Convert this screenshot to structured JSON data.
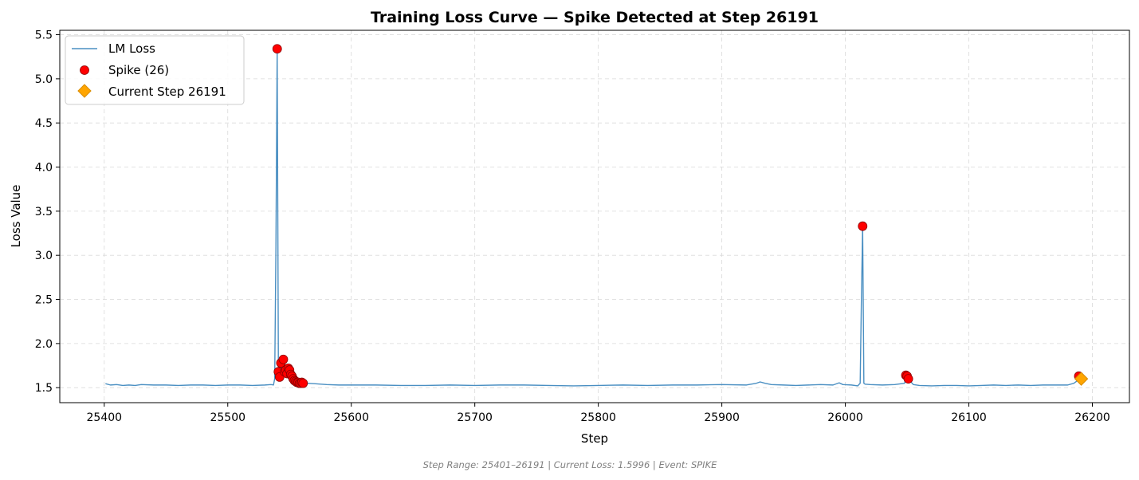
{
  "chart_data": {
    "type": "line",
    "title": "Training Loss Curve — Spike Detected at Step 26191",
    "xlabel": "Step",
    "ylabel": "Loss Value",
    "xlim": [
      25364,
      26230
    ],
    "ylim": [
      1.33,
      5.55
    ],
    "xticks": [
      25400,
      25500,
      25600,
      25700,
      25800,
      25900,
      26000,
      26100,
      26200
    ],
    "yticks": [
      1.5,
      2.0,
      2.5,
      3.0,
      3.5,
      4.0,
      4.5,
      5.0,
      5.5
    ],
    "xtick_labels": [
      "25400",
      "25500",
      "25600",
      "25700",
      "25800",
      "25900",
      "26000",
      "26100",
      "26200"
    ],
    "ytick_labels": [
      "1.5",
      "2.0",
      "2.5",
      "3.0",
      "3.5",
      "4.0",
      "4.5",
      "5.0",
      "5.5"
    ],
    "grid": true,
    "legend_position": "top-left",
    "colors": {
      "line": "#4a8fc2",
      "spike": "#ff0000",
      "spike_edge": "#8b0000",
      "current": "#ffa500",
      "current_edge": "#d98c00",
      "grid": "#d9d9d9"
    },
    "series": [
      {
        "name": "LM Loss",
        "type": "line",
        "x": [
          25401,
          25405,
          25410,
          25415,
          25420,
          25425,
          25430,
          25440,
          25450,
          25460,
          25470,
          25480,
          25490,
          25500,
          25510,
          25520,
          25530,
          25535,
          25537,
          25538,
          25539,
          25540,
          25541,
          25542,
          25543,
          25544,
          25545,
          25546,
          25547,
          25548,
          25549,
          25550,
          25551,
          25552,
          25553,
          25554,
          25555,
          25556,
          25557,
          25558,
          25559,
          25560,
          25561,
          25565,
          25570,
          25580,
          25590,
          25600,
          25620,
          25640,
          25660,
          25680,
          25700,
          25720,
          25740,
          25760,
          25780,
          25800,
          25820,
          25840,
          25860,
          25880,
          25900,
          25920,
          25928,
          25931,
          25935,
          25940,
          25950,
          25960,
          25970,
          25980,
          25990,
          25995,
          25998,
          26005,
          26010,
          26012,
          26013,
          26014,
          26015,
          26016,
          26020,
          26030,
          26040,
          26048,
          26049,
          26050,
          26051,
          26055,
          26060,
          26070,
          26080,
          26090,
          26100,
          26110,
          26120,
          26130,
          26140,
          26150,
          26160,
          26170,
          26180,
          26185,
          26188,
          26189,
          26190,
          26191
        ],
        "y": [
          1.545,
          1.53,
          1.535,
          1.525,
          1.53,
          1.525,
          1.535,
          1.53,
          1.53,
          1.525,
          1.53,
          1.53,
          1.525,
          1.53,
          1.53,
          1.525,
          1.53,
          1.535,
          1.53,
          1.6,
          3.1,
          5.34,
          1.68,
          1.62,
          1.78,
          1.65,
          1.82,
          1.68,
          1.7,
          1.66,
          1.72,
          1.7,
          1.65,
          1.63,
          1.6,
          1.58,
          1.57,
          1.56,
          1.56,
          1.55,
          1.55,
          1.56,
          1.55,
          1.55,
          1.545,
          1.535,
          1.53,
          1.53,
          1.53,
          1.525,
          1.525,
          1.53,
          1.525,
          1.53,
          1.53,
          1.525,
          1.52,
          1.525,
          1.53,
          1.525,
          1.53,
          1.53,
          1.535,
          1.53,
          1.55,
          1.565,
          1.55,
          1.535,
          1.53,
          1.525,
          1.53,
          1.535,
          1.53,
          1.555,
          1.535,
          1.53,
          1.52,
          1.55,
          2.5,
          3.33,
          1.55,
          1.54,
          1.535,
          1.53,
          1.535,
          1.55,
          1.64,
          1.63,
          1.6,
          1.535,
          1.525,
          1.52,
          1.525,
          1.525,
          1.52,
          1.525,
          1.53,
          1.525,
          1.53,
          1.525,
          1.53,
          1.53,
          1.53,
          1.55,
          1.58,
          1.63,
          1.6,
          1.6
        ]
      },
      {
        "name": "Spike (26)",
        "type": "scatter",
        "x": [
          25540,
          25541,
          25542,
          25543,
          25545,
          25546,
          25547,
          25548,
          25549,
          25550,
          25551,
          25552,
          25553,
          25554,
          25555,
          25556,
          25557,
          25558,
          25559,
          25560,
          25561,
          26014,
          26049,
          26050,
          26051,
          26189
        ],
        "y": [
          5.34,
          1.68,
          1.62,
          1.78,
          1.82,
          1.68,
          1.7,
          1.66,
          1.72,
          1.7,
          1.65,
          1.63,
          1.6,
          1.58,
          1.57,
          1.56,
          1.56,
          1.55,
          1.55,
          1.56,
          1.55,
          3.33,
          1.64,
          1.63,
          1.6,
          1.63
        ]
      },
      {
        "name": "Current Step 26191",
        "type": "marker",
        "x": [
          26191
        ],
        "y": [
          1.6
        ]
      }
    ],
    "footer": "Step Range: 25401–26191 | Current Loss: 1.5996 | Event: SPIKE"
  }
}
